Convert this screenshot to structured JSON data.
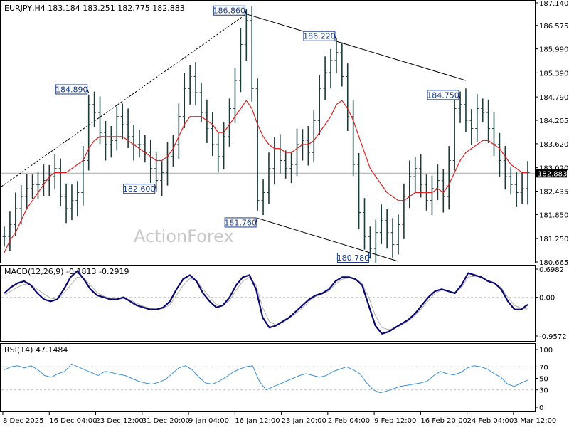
{
  "header": {
    "symbol_line": "EURJPY,H4  183.184 183.251 182.775 182.883"
  },
  "watermark": "ActionForex",
  "colors": {
    "candle": "#1b3a3a",
    "ma": "#dd2222",
    "macd": "#0a0a6e",
    "signal": "#b0b0b0",
    "rsi": "#3a8fd8",
    "channel": "#000000",
    "grid_dash": "#c8c8c8",
    "price_line": "#a8a8a8"
  },
  "chart_data": [
    {
      "type": "line",
      "panel": "price",
      "title": "EURJPY,H4",
      "ohlc_last": {
        "open": 183.184,
        "high": 183.251,
        "low": 182.775,
        "close": 182.883
      },
      "current_price": 182.883,
      "current_price_label": "182.883",
      "ylim": [
        180.665,
        187.14
      ],
      "y_ticks": [
        "187.140",
        "186.575",
        "185.990",
        "185.390",
        "184.790",
        "184.205",
        "183.620",
        "183.020",
        "182.435",
        "181.850",
        "181.250",
        "180.665"
      ],
      "x_ticks": [
        "8 Dec 2025",
        "16 Dec 04:00",
        "23 Dec 12:00",
        "31 Dec 20:00",
        "9 Jan 04:00",
        "16 Jan 12:00",
        "23 Jan 20:00",
        "2 Feb 04:00",
        "9 Feb 12:00",
        "16 Feb 20:00",
        "24 Feb 04:00",
        "3 Mar 12:00"
      ],
      "series": [
        {
          "role": "close",
          "values": [
            181.3,
            181.6,
            182.0,
            182.3,
            182.5,
            182.6,
            182.6,
            182.7,
            182.8,
            183.0,
            182.3,
            182.0,
            182.2,
            182.4,
            183.2,
            184.6,
            184.4,
            183.9,
            183.6,
            183.7,
            184.3,
            184.1,
            183.8,
            183.6,
            183.6,
            183.4,
            183.0,
            182.7,
            182.9,
            183.3,
            183.6,
            184.3,
            185.0,
            185.3,
            184.9,
            184.4,
            184.0,
            183.6,
            183.3,
            183.8,
            184.5,
            185.2,
            186.1,
            186.7,
            185.0,
            182.2,
            182.4,
            183.0,
            183.5,
            183.2,
            183.0,
            183.1,
            183.6,
            183.7,
            183.4,
            184.2,
            185.0,
            185.4,
            185.7,
            185.9,
            185.3,
            184.3,
            183.1,
            181.9,
            181.3,
            181.0,
            181.4,
            181.7,
            181.4,
            181.1,
            181.6,
            182.3,
            182.8,
            183.0,
            182.6,
            182.2,
            182.5,
            182.7,
            182.3,
            183.2,
            184.5,
            184.6,
            184.2,
            184.0,
            184.5,
            184.4,
            184.0,
            183.6,
            183.2,
            182.8,
            182.6,
            182.4,
            182.5,
            182.9
          ],
          "last_time_label": "3 Mar 12:00"
        },
        {
          "role": "moving-average",
          "values": [
            180.9,
            181.2,
            181.4,
            181.7,
            182.0,
            182.2,
            182.4,
            182.6,
            182.8,
            182.9,
            182.9,
            182.9,
            183.0,
            183.1,
            183.2,
            183.5,
            183.7,
            183.8,
            183.8,
            183.8,
            183.8,
            183.8,
            183.7,
            183.6,
            183.5,
            183.4,
            183.3,
            183.2,
            183.2,
            183.3,
            183.5,
            183.8,
            184.1,
            184.3,
            184.3,
            184.3,
            184.2,
            184.1,
            183.9,
            183.9,
            184.1,
            184.3,
            184.5,
            184.7,
            184.5,
            184.1,
            183.8,
            183.6,
            183.5,
            183.5,
            183.4,
            183.4,
            183.5,
            183.6,
            183.6,
            183.7,
            183.9,
            184.1,
            184.3,
            184.6,
            184.7,
            184.5,
            184.2,
            183.8,
            183.4,
            183.0,
            182.8,
            182.6,
            182.4,
            182.3,
            182.2,
            182.2,
            182.3,
            182.4,
            182.4,
            182.4,
            182.4,
            182.5,
            182.4,
            182.6,
            182.9,
            183.2,
            183.4,
            183.5,
            183.6,
            183.7,
            183.7,
            183.6,
            183.5,
            183.3,
            183.1,
            183.0,
            182.9,
            182.9
          ]
        }
      ],
      "annotations": [
        {
          "text": "186.860",
          "value": 186.86
        },
        {
          "text": "186.220",
          "value": 186.22
        },
        {
          "text": "184.890",
          "value": 184.89
        },
        {
          "text": "184.750",
          "value": 184.75
        },
        {
          "text": "182.600",
          "value": 182.6
        },
        {
          "text": "181.760",
          "value": 181.76
        },
        {
          "text": "180.780",
          "value": 180.78
        }
      ]
    },
    {
      "type": "line",
      "panel": "macd",
      "title": "MACD(12,26,9) -0.1813 -0.2919",
      "ylim": [
        -0.9572,
        0.6982
      ],
      "y_ticks": [
        "0.6982",
        "0.00",
        "-0.9572"
      ],
      "series": [
        {
          "role": "macd",
          "values": [
            0.1,
            0.25,
            0.35,
            0.4,
            0.3,
            0.1,
            -0.05,
            -0.1,
            -0.05,
            0.2,
            0.5,
            0.65,
            0.45,
            0.2,
            0.05,
            0.0,
            -0.05,
            -0.05,
            0.0,
            -0.1,
            -0.2,
            -0.25,
            -0.3,
            -0.3,
            -0.25,
            -0.1,
            0.2,
            0.45,
            0.55,
            0.4,
            0.1,
            -0.1,
            -0.25,
            -0.2,
            0.0,
            0.3,
            0.5,
            0.55,
            0.2,
            -0.5,
            -0.75,
            -0.7,
            -0.6,
            -0.5,
            -0.35,
            -0.2,
            -0.05,
            0.05,
            0.1,
            0.2,
            0.4,
            0.5,
            0.5,
            0.45,
            0.3,
            -0.2,
            -0.7,
            -0.9,
            -0.85,
            -0.75,
            -0.65,
            -0.55,
            -0.4,
            -0.2,
            0.0,
            0.15,
            0.2,
            0.15,
            0.1,
            0.3,
            0.6,
            0.55,
            0.5,
            0.4,
            0.35,
            0.2,
            -0.1,
            -0.3,
            -0.3,
            -0.18
          ]
        },
        {
          "role": "signal",
          "values": [
            0.05,
            0.15,
            0.25,
            0.32,
            0.3,
            0.2,
            0.08,
            -0.02,
            -0.05,
            0.1,
            0.3,
            0.5,
            0.48,
            0.3,
            0.12,
            0.03,
            -0.03,
            -0.05,
            -0.03,
            -0.06,
            -0.15,
            -0.22,
            -0.27,
            -0.29,
            -0.28,
            -0.18,
            0.05,
            0.3,
            0.47,
            0.42,
            0.2,
            0.0,
            -0.18,
            -0.2,
            -0.08,
            0.18,
            0.4,
            0.5,
            0.3,
            -0.25,
            -0.6,
            -0.68,
            -0.62,
            -0.52,
            -0.4,
            -0.26,
            -0.1,
            0.02,
            0.08,
            0.16,
            0.33,
            0.45,
            0.48,
            0.46,
            0.35,
            0.0,
            -0.45,
            -0.75,
            -0.8,
            -0.76,
            -0.68,
            -0.58,
            -0.45,
            -0.27,
            -0.08,
            0.1,
            0.18,
            0.16,
            0.12,
            0.24,
            0.5,
            0.52,
            0.5,
            0.42,
            0.36,
            0.24,
            0.0,
            -0.2,
            -0.27,
            -0.29
          ]
        }
      ]
    },
    {
      "type": "line",
      "panel": "rsi",
      "title": "RSI(14) 47.1484",
      "ylim": [
        0,
        100
      ],
      "y_ticks": [
        "100",
        "70",
        "50",
        "30",
        "0"
      ],
      "series": [
        {
          "role": "rsi",
          "values": [
            65,
            70,
            72,
            68,
            72,
            65,
            55,
            52,
            58,
            62,
            75,
            70,
            65,
            60,
            55,
            62,
            60,
            57,
            55,
            50,
            45,
            42,
            40,
            43,
            48,
            58,
            68,
            72,
            65,
            52,
            42,
            40,
            45,
            52,
            60,
            66,
            70,
            72,
            45,
            30,
            35,
            40,
            45,
            50,
            55,
            58,
            55,
            52,
            55,
            62,
            66,
            70,
            65,
            58,
            42,
            30,
            25,
            28,
            32,
            36,
            38,
            40,
            42,
            45,
            55,
            62,
            58,
            56,
            60,
            68,
            72,
            70,
            66,
            58,
            52,
            40,
            36,
            42,
            47
          ]
        }
      ]
    }
  ]
}
